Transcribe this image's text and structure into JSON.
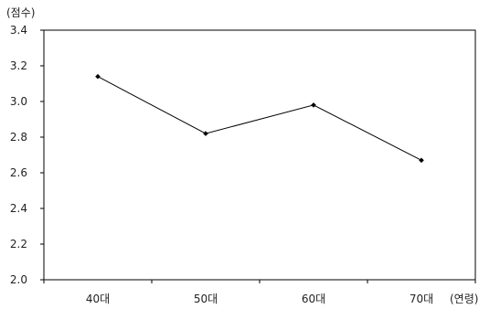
{
  "chart_data": {
    "type": "line",
    "title": "",
    "ylabel": "(점수)",
    "xlabel": "(연령)",
    "categories": [
      "40대",
      "50대",
      "60대",
      "70대"
    ],
    "series": [
      {
        "values": [
          3.14,
          2.82,
          2.98,
          2.67
        ]
      }
    ],
    "ylim": [
      2.0,
      3.4
    ],
    "yticks": [
      "2.0",
      "2.2",
      "2.4",
      "2.6",
      "2.8",
      "3.0",
      "3.2",
      "3.4"
    ],
    "grid": false,
    "legend": "none",
    "colors": {
      "line": "#000000",
      "marker": "#000000",
      "axes": "#000000"
    }
  }
}
